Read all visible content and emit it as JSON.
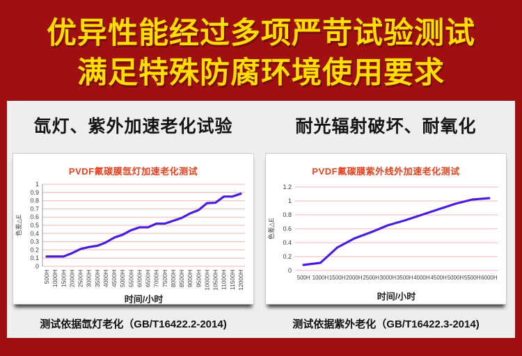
{
  "banner": {
    "line1": "优异性能经过多项严苛试验测试",
    "line2": "满足特殊防腐环境使用要求",
    "bg_color": "#a01010",
    "text_color": "#ffdf00"
  },
  "section_headings": {
    "left": "氙灯、紫外加速老化试验",
    "right": "耐光辐射破坏、耐氧化"
  },
  "captions": {
    "left": "测试依据氙灯老化（GB/T16422.2-2014)",
    "right": "测试依据紫外老化（GB/T16422.3-2014)"
  },
  "chart_data": [
    {
      "type": "line",
      "title": "PVDF氟碳膜氙灯加速老化测试",
      "xlabel": "时间/小时",
      "ylabel": "色差△E",
      "categories": [
        "500H",
        "1000H",
        "1500H",
        "2000H",
        "2500H",
        "3000H",
        "3500H",
        "4000H",
        "4500H",
        "5000H",
        "5500H",
        "6000H",
        "6500H",
        "7000H",
        "7500H",
        "8000H",
        "8500H",
        "9000H",
        "9500H",
        "10000H",
        "10500H",
        "11000H",
        "11500H",
        "12000H"
      ],
      "values": [
        0.12,
        0.12,
        0.12,
        0.16,
        0.21,
        0.235,
        0.25,
        0.29,
        0.35,
        0.385,
        0.44,
        0.475,
        0.475,
        0.52,
        0.52,
        0.555,
        0.59,
        0.645,
        0.685,
        0.77,
        0.775,
        0.85,
        0.85,
        0.885
      ],
      "ylim": [
        0,
        1
      ],
      "yticks": [
        0,
        0.1,
        0.2,
        0.3,
        0.4,
        0.5,
        0.6,
        0.7,
        0.8,
        0.9,
        1
      ],
      "ytick_labels": [
        "0",
        "0.1",
        "0.2",
        "0.3",
        "0.4",
        "0.5",
        "0.6",
        "0.7",
        "0.8",
        "0.9",
        "1"
      ],
      "x_label_rotation": -90,
      "grid": true,
      "legend": false,
      "line_color": "#4a1be0",
      "grid_color": "#f4b4b0",
      "title_color": "#e8401c"
    },
    {
      "type": "line",
      "title": "PVDF氟碳膜紫外线外加速老化测试",
      "xlabel": "时间/小时",
      "ylabel": "色差△E",
      "categories": [
        "500H",
        "1000H",
        "1500H",
        "2000H",
        "2500H",
        "3000H",
        "3500H",
        "4000H",
        "4500H",
        "5000H",
        "5500H",
        "6000H"
      ],
      "values": [
        0.08,
        0.11,
        0.33,
        0.46,
        0.55,
        0.65,
        0.72,
        0.8,
        0.88,
        0.96,
        1.02,
        1.04
      ],
      "ylim": [
        0,
        1.2
      ],
      "yticks": [
        0,
        0.2,
        0.4,
        0.6,
        0.8,
        1,
        1.2
      ],
      "ytick_labels": [
        "0",
        "0.2",
        "0.4",
        "0.6",
        "0.8",
        "1",
        "1.2"
      ],
      "x_label_rotation": 0,
      "grid": true,
      "legend": false,
      "line_color": "#4a1be0",
      "grid_color": "#f4b4b0",
      "title_color": "#e8401c"
    }
  ]
}
